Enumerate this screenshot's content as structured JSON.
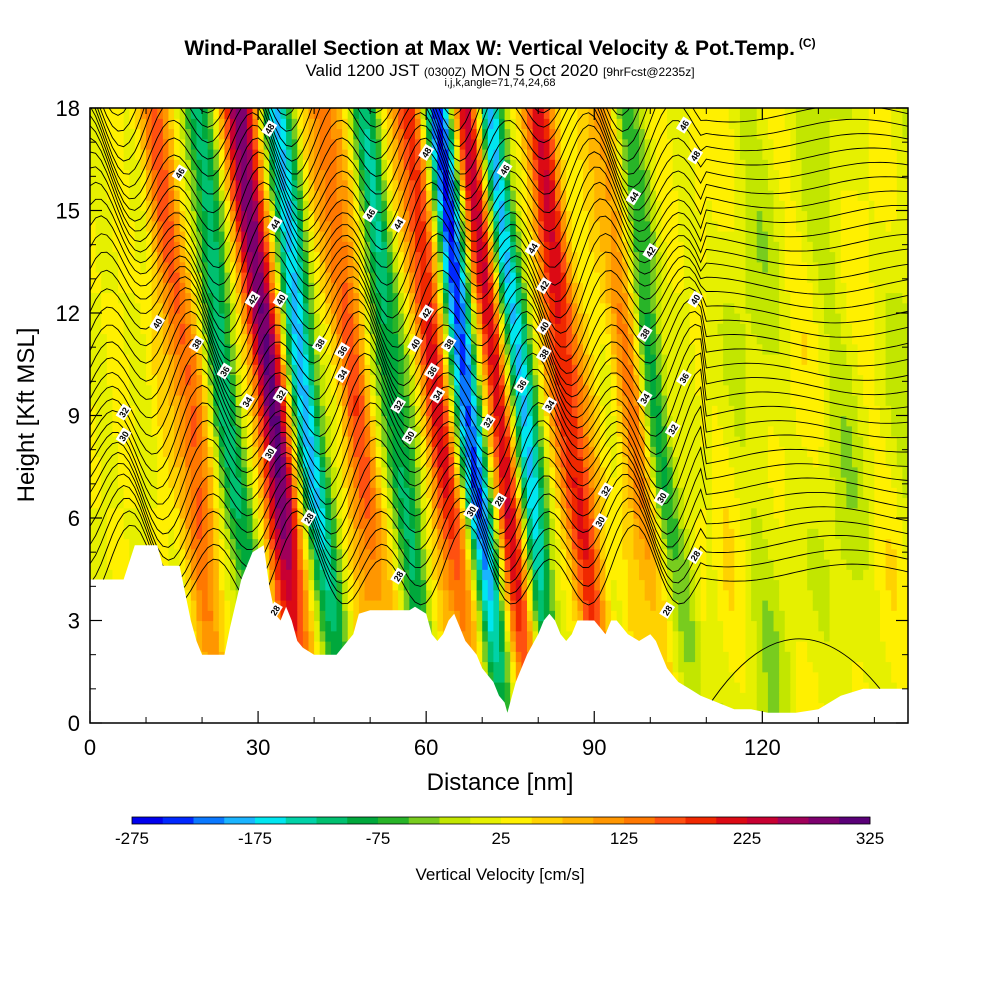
{
  "title": {
    "main": "Wind-Parallel Section at Max W: Vertical Velocity & Pot.Temp.",
    "copyright": "(C)",
    "valid_prefix": "Valid 1200 JST",
    "valid_zulu": "(0300Z)",
    "valid_date": "MON 5 Oct 2020",
    "forecast": "[9hrFcst@2235z]",
    "indices": "i,j,k,angle=71,74,24,68"
  },
  "chart_data": {
    "type": "heatmap",
    "xlabel": "Distance [nm]",
    "ylabel": "Height [Kft MSL]",
    "xlim": [
      0,
      146
    ],
    "ylim": [
      0,
      18
    ],
    "x_ticks": [
      "0",
      "30",
      "60",
      "90",
      "120"
    ],
    "y_ticks": [
      "0",
      "3",
      "6",
      "9",
      "12",
      "15",
      "18"
    ],
    "field": "Vertical Velocity [cm/s]",
    "colorbar": {
      "label": "Vertical Velocity [cm/s]",
      "tick_labels": [
        "-275",
        "-175",
        "-75",
        "25",
        "125",
        "225",
        "325"
      ],
      "colors": [
        "#0000ee",
        "#0028ff",
        "#0a78ff",
        "#1ab4ff",
        "#00e6f0",
        "#00d2a8",
        "#00c070",
        "#00a83c",
        "#28b428",
        "#78cc1e",
        "#c2e600",
        "#e6f000",
        "#fff000",
        "#ffd200",
        "#ffb400",
        "#ff9600",
        "#ff7800",
        "#ff5010",
        "#f02800",
        "#dc0a14",
        "#c80032",
        "#a0005a",
        "#7d006e",
        "#5a0078"
      ]
    },
    "updraft_bands_nm": [
      17,
      32,
      47,
      62,
      73,
      85,
      97
    ],
    "downdraft_bands_nm": [
      24,
      38,
      54,
      67,
      76,
      100
    ],
    "terrain_kft": [
      [
        0,
        4.2
      ],
      [
        6,
        4.2
      ],
      [
        8,
        5.2
      ],
      [
        12,
        5.2
      ],
      [
        13,
        4.6
      ],
      [
        16,
        4.6
      ],
      [
        17,
        3.8
      ],
      [
        18,
        3.0
      ],
      [
        19,
        2.4
      ],
      [
        20,
        2.0
      ],
      [
        22,
        2.0
      ],
      [
        24,
        2.0
      ],
      [
        25,
        2.8
      ],
      [
        27,
        4.2
      ],
      [
        29,
        5.0
      ],
      [
        31,
        5.2
      ],
      [
        32,
        4.0
      ],
      [
        33,
        3.2
      ],
      [
        34,
        3.0
      ],
      [
        35,
        3.4
      ],
      [
        36,
        3.0
      ],
      [
        37,
        2.4
      ],
      [
        38,
        2.2
      ],
      [
        40,
        2.0
      ],
      [
        42,
        2.0
      ],
      [
        44,
        2.0
      ],
      [
        46,
        2.4
      ],
      [
        47,
        2.6
      ],
      [
        48,
        3.2
      ],
      [
        50,
        3.3
      ],
      [
        54,
        3.3
      ],
      [
        57,
        3.3
      ],
      [
        58,
        3.4
      ],
      [
        60,
        3.2
      ],
      [
        61,
        2.6
      ],
      [
        62,
        2.4
      ],
      [
        63,
        2.6
      ],
      [
        64,
        3.0
      ],
      [
        65,
        3.2
      ],
      [
        66,
        2.8
      ],
      [
        67,
        2.4
      ],
      [
        68,
        2.2
      ],
      [
        69,
        2.0
      ],
      [
        70,
        1.6
      ],
      [
        71,
        1.4
      ],
      [
        72,
        1.2
      ],
      [
        73,
        0.8
      ],
      [
        74,
        0.6
      ],
      [
        74.5,
        0.3
      ],
      [
        75,
        0.6
      ],
      [
        76,
        1.2
      ],
      [
        78,
        2.0
      ],
      [
        80,
        2.6
      ],
      [
        81,
        3.0
      ],
      [
        82,
        3.2
      ],
      [
        83,
        3.0
      ],
      [
        84,
        2.6
      ],
      [
        85,
        2.4
      ],
      [
        86,
        2.6
      ],
      [
        87,
        3.0
      ],
      [
        90,
        3.0
      ],
      [
        91,
        2.8
      ],
      [
        92,
        2.6
      ],
      [
        93,
        3.0
      ],
      [
        94,
        3.0
      ],
      [
        96,
        2.6
      ],
      [
        98,
        2.4
      ],
      [
        100,
        2.6
      ],
      [
        101,
        2.4
      ],
      [
        102,
        2.0
      ],
      [
        103,
        1.6
      ],
      [
        104,
        1.4
      ],
      [
        105,
        1.2
      ],
      [
        107,
        1.0
      ],
      [
        109,
        0.8
      ],
      [
        112,
        0.6
      ],
      [
        115,
        0.4
      ],
      [
        118,
        0.4
      ],
      [
        121,
        0.3
      ],
      [
        126,
        0.3
      ],
      [
        130,
        0.4
      ],
      [
        132,
        0.6
      ],
      [
        134,
        0.8
      ],
      [
        136,
        0.9
      ],
      [
        138,
        1.0
      ],
      [
        146,
        1.0
      ]
    ],
    "isentrope_labels": [
      {
        "x": 32,
        "y": 17.4,
        "t": "48"
      },
      {
        "x": 16,
        "y": 16.1,
        "t": "46"
      },
      {
        "x": 33,
        "y": 14.6,
        "t": "44"
      },
      {
        "x": 50,
        "y": 14.9,
        "t": "46"
      },
      {
        "x": 55,
        "y": 14.6,
        "t": "44"
      },
      {
        "x": 60,
        "y": 16.7,
        "t": "48"
      },
      {
        "x": 74,
        "y": 16.2,
        "t": "46"
      },
      {
        "x": 79,
        "y": 13.9,
        "t": "44"
      },
      {
        "x": 97,
        "y": 15.4,
        "t": "44"
      },
      {
        "x": 106,
        "y": 17.5,
        "t": "46"
      },
      {
        "x": 108,
        "y": 16.6,
        "t": "48"
      },
      {
        "x": 100,
        "y": 13.8,
        "t": "42"
      },
      {
        "x": 108,
        "y": 12.4,
        "t": "40"
      },
      {
        "x": 29,
        "y": 12.4,
        "t": "42"
      },
      {
        "x": 34,
        "y": 12.4,
        "t": "40"
      },
      {
        "x": 12,
        "y": 11.7,
        "t": "40"
      },
      {
        "x": 19,
        "y": 11.1,
        "t": "38"
      },
      {
        "x": 41,
        "y": 11.1,
        "t": "38"
      },
      {
        "x": 45,
        "y": 10.9,
        "t": "36"
      },
      {
        "x": 24,
        "y": 10.3,
        "t": "36"
      },
      {
        "x": 45,
        "y": 10.2,
        "t": "34"
      },
      {
        "x": 28,
        "y": 9.4,
        "t": "34"
      },
      {
        "x": 34,
        "y": 9.6,
        "t": "32"
      },
      {
        "x": 6,
        "y": 9.1,
        "t": "32"
      },
      {
        "x": 6,
        "y": 8.4,
        "t": "30"
      },
      {
        "x": 32,
        "y": 7.9,
        "t": "30"
      },
      {
        "x": 39,
        "y": 6.0,
        "t": "28"
      },
      {
        "x": 60,
        "y": 12.0,
        "t": "42"
      },
      {
        "x": 58,
        "y": 11.1,
        "t": "40"
      },
      {
        "x": 64,
        "y": 11.1,
        "t": "38"
      },
      {
        "x": 61,
        "y": 10.3,
        "t": "36"
      },
      {
        "x": 62,
        "y": 9.6,
        "t": "34"
      },
      {
        "x": 55,
        "y": 9.3,
        "t": "32"
      },
      {
        "x": 57,
        "y": 8.4,
        "t": "30"
      },
      {
        "x": 81,
        "y": 12.8,
        "t": "42"
      },
      {
        "x": 81,
        "y": 11.6,
        "t": "40"
      },
      {
        "x": 81,
        "y": 10.8,
        "t": "38"
      },
      {
        "x": 77,
        "y": 9.9,
        "t": "36"
      },
      {
        "x": 82,
        "y": 9.3,
        "t": "34"
      },
      {
        "x": 71,
        "y": 8.8,
        "t": "32"
      },
      {
        "x": 73,
        "y": 6.5,
        "t": "28"
      },
      {
        "x": 68,
        "y": 6.2,
        "t": "30"
      },
      {
        "x": 99,
        "y": 11.4,
        "t": "38"
      },
      {
        "x": 106,
        "y": 10.1,
        "t": "36"
      },
      {
        "x": 99,
        "y": 9.5,
        "t": "34"
      },
      {
        "x": 104,
        "y": 8.6,
        "t": "32"
      },
      {
        "x": 92,
        "y": 6.8,
        "t": "32"
      },
      {
        "x": 91,
        "y": 5.9,
        "t": "30"
      },
      {
        "x": 102,
        "y": 6.6,
        "t": "30"
      },
      {
        "x": 108,
        "y": 4.9,
        "t": "28"
      },
      {
        "x": 55,
        "y": 4.3,
        "t": "28"
      },
      {
        "x": 33,
        "y": 3.3,
        "t": "28"
      },
      {
        "x": 103,
        "y": 3.3,
        "t": "28"
      }
    ]
  }
}
